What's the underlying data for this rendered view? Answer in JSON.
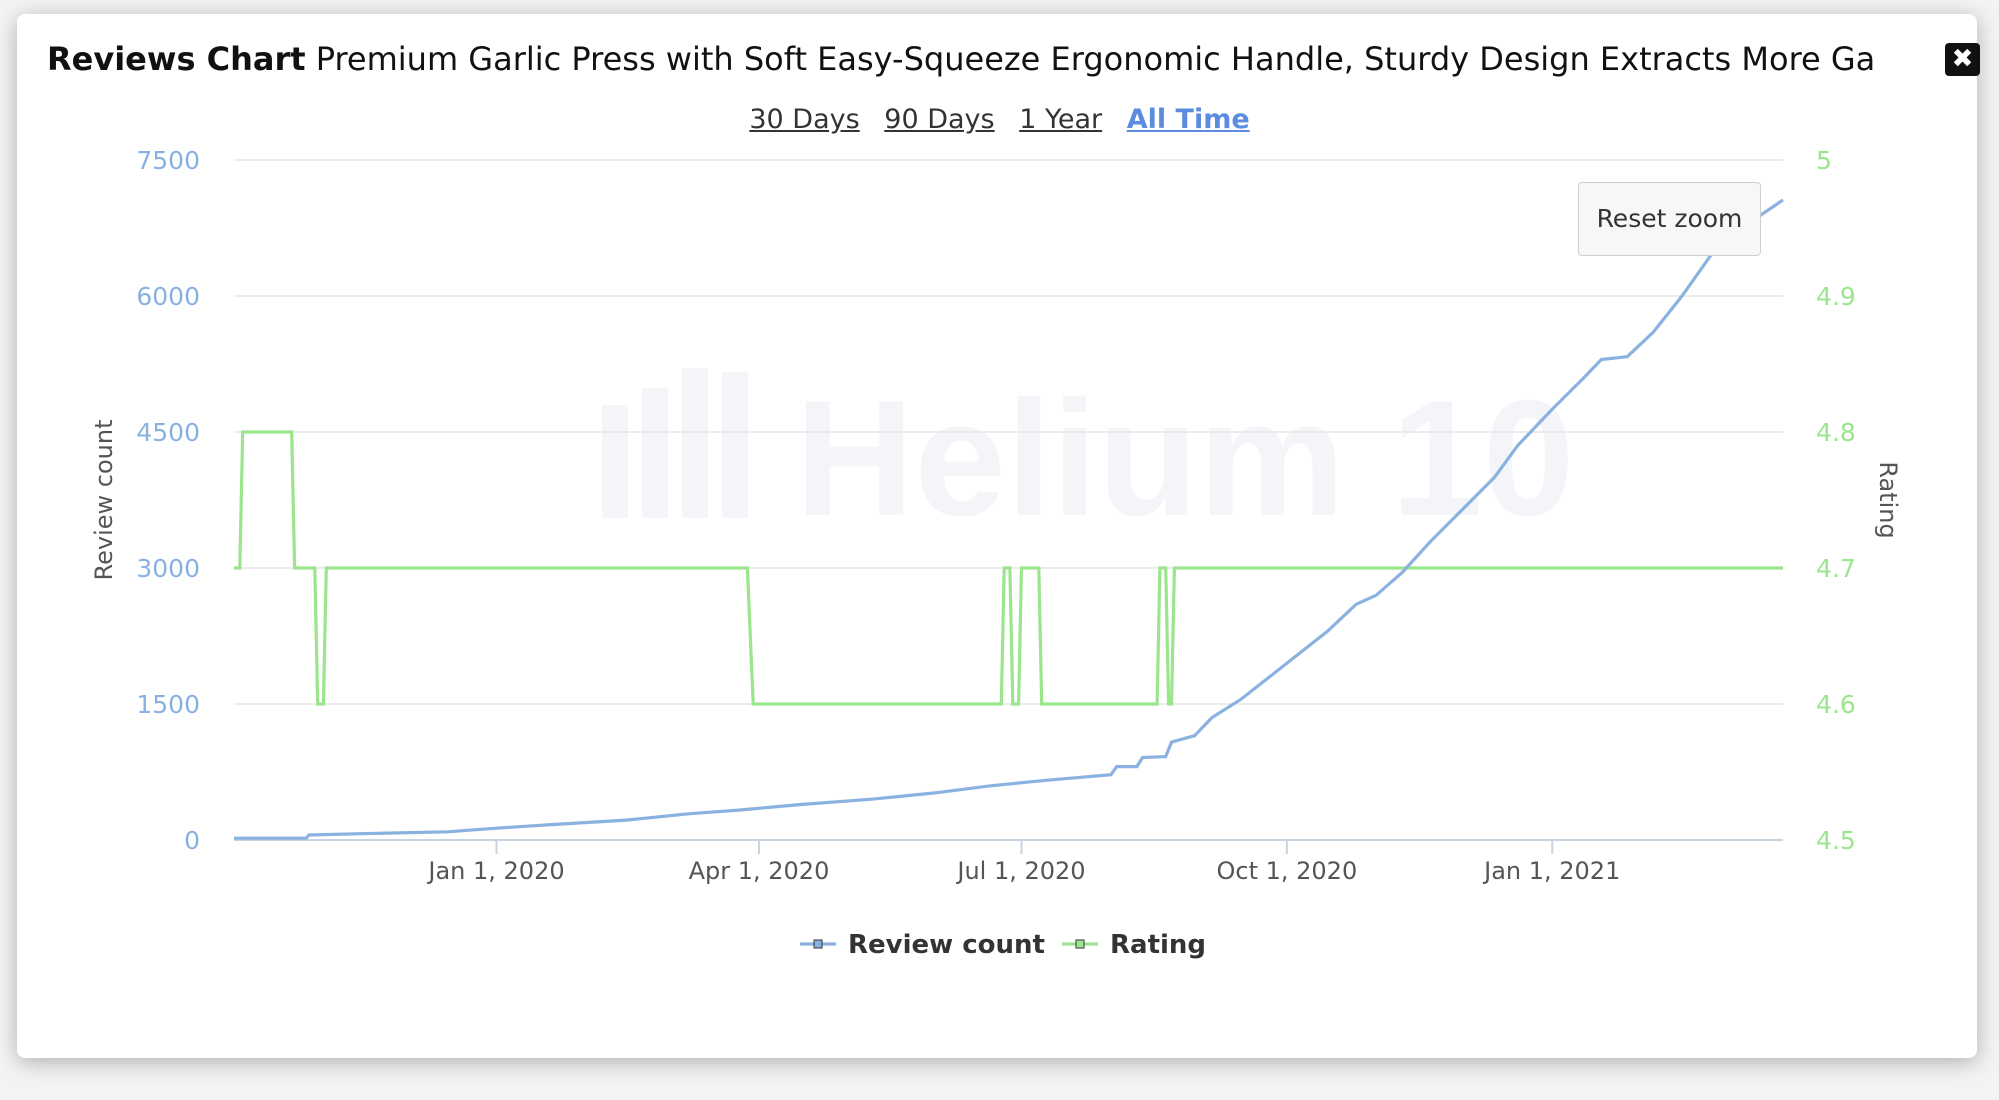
{
  "modal": {
    "title_bold": "Reviews Chart",
    "title_rest": " Premium Garlic Press with Soft Easy-Squeeze Ergonomic Handle, Sturdy Design Extracts More Garli...",
    "close_icon": "close-icon"
  },
  "ranges": [
    {
      "label": "30 Days",
      "active": false
    },
    {
      "label": "90 Days",
      "active": false
    },
    {
      "label": "1 Year",
      "active": false
    },
    {
      "label": "All Time",
      "active": true
    }
  ],
  "reset_zoom_label": "Reset zoom",
  "watermark": "Helium 10",
  "colors": {
    "review": "#8ab2e0",
    "rating": "#9be58d",
    "active_range": "#5b8ce0"
  },
  "chart_data": {
    "type": "line",
    "ylabel_left": "Review count",
    "ylabel_right": "Rating",
    "yticks_left": [
      "0",
      "1500",
      "3000",
      "4500",
      "6000",
      "7500"
    ],
    "yticks_right": [
      "4.5",
      "4.6",
      "4.7",
      "4.8",
      "4.9",
      "5"
    ],
    "ylim_left": [
      0,
      7500
    ],
    "ylim_right": [
      4.5,
      5.0
    ],
    "xlim": [
      "2019-10-02",
      "2021-03-22"
    ],
    "xticks": [
      {
        "date": "2020-01-01",
        "label": "Jan 1, 2020"
      },
      {
        "date": "2020-04-01",
        "label": "Apr 1, 2020"
      },
      {
        "date": "2020-07-01",
        "label": "Jul 1, 2020"
      },
      {
        "date": "2020-10-01",
        "label": "Oct 1, 2020"
      },
      {
        "date": "2021-01-01",
        "label": "Jan 1, 2021"
      }
    ],
    "grid": true,
    "legend": "bottom",
    "series": [
      {
        "name": "Review count",
        "axis": "left",
        "points": [
          [
            "2019-10-02",
            20
          ],
          [
            "2019-10-27",
            20
          ],
          [
            "2019-10-28",
            55
          ],
          [
            "2019-11-15",
            70
          ],
          [
            "2019-12-15",
            90
          ],
          [
            "2020-01-01",
            130
          ],
          [
            "2020-01-20",
            170
          ],
          [
            "2020-02-15",
            220
          ],
          [
            "2020-03-08",
            290
          ],
          [
            "2020-03-25",
            330
          ],
          [
            "2020-04-15",
            390
          ],
          [
            "2020-05-10",
            450
          ],
          [
            "2020-06-01",
            520
          ],
          [
            "2020-06-21",
            600
          ],
          [
            "2020-07-10",
            660
          ],
          [
            "2020-08-01",
            720
          ],
          [
            "2020-08-03",
            810
          ],
          [
            "2020-08-10",
            810
          ],
          [
            "2020-08-12",
            910
          ],
          [
            "2020-08-20",
            920
          ],
          [
            "2020-08-22",
            1080
          ],
          [
            "2020-08-30",
            1150
          ],
          [
            "2020-09-05",
            1350
          ],
          [
            "2020-09-15",
            1550
          ],
          [
            "2020-09-25",
            1800
          ],
          [
            "2020-10-05",
            2050
          ],
          [
            "2020-10-15",
            2300
          ],
          [
            "2020-10-25",
            2600
          ],
          [
            "2020-11-01",
            2700
          ],
          [
            "2020-11-10",
            2950
          ],
          [
            "2020-11-20",
            3300
          ],
          [
            "2020-12-01",
            3650
          ],
          [
            "2020-12-12",
            4000
          ],
          [
            "2020-12-20",
            4350
          ],
          [
            "2021-01-01",
            4750
          ],
          [
            "2021-01-12",
            5100
          ],
          [
            "2021-01-18",
            5300
          ],
          [
            "2021-01-27",
            5330
          ],
          [
            "2021-02-05",
            5600
          ],
          [
            "2021-02-15",
            6000
          ],
          [
            "2021-02-25",
            6450
          ],
          [
            "2021-03-10",
            6800
          ],
          [
            "2021-03-22",
            7060
          ]
        ]
      },
      {
        "name": "Rating",
        "axis": "right",
        "points": [
          [
            "2019-10-02",
            4.7
          ],
          [
            "2019-10-04",
            4.7
          ],
          [
            "2019-10-05",
            4.8
          ],
          [
            "2019-10-22",
            4.8
          ],
          [
            "2019-10-23",
            4.7
          ],
          [
            "2019-10-30",
            4.7
          ],
          [
            "2019-10-31",
            4.6
          ],
          [
            "2019-11-02",
            4.6
          ],
          [
            "2019-11-03",
            4.7
          ],
          [
            "2020-03-28",
            4.7
          ],
          [
            "2020-03-30",
            4.6
          ],
          [
            "2020-06-24",
            4.6
          ],
          [
            "2020-06-25",
            4.7
          ],
          [
            "2020-06-27",
            4.7
          ],
          [
            "2020-06-28",
            4.6
          ],
          [
            "2020-06-30",
            4.6
          ],
          [
            "2020-07-01",
            4.7
          ],
          [
            "2020-07-07",
            4.7
          ],
          [
            "2020-07-08",
            4.6
          ],
          [
            "2020-08-17",
            4.6
          ],
          [
            "2020-08-18",
            4.7
          ],
          [
            "2020-08-20",
            4.7
          ],
          [
            "2020-08-21",
            4.6
          ],
          [
            "2020-08-22",
            4.6
          ],
          [
            "2020-08-23",
            4.7
          ],
          [
            "2021-03-22",
            4.7
          ]
        ]
      }
    ]
  }
}
